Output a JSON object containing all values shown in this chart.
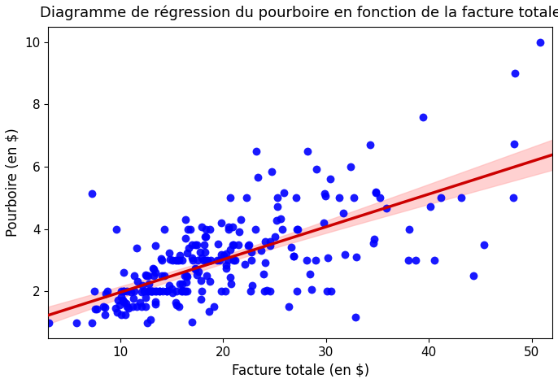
{
  "title": "Diagramme de régression du pourboire en fonction de la facture totale",
  "xlabel": "Facture totale (en $)",
  "ylabel": "Pourboire (en $)",
  "xlim": [
    3,
    52
  ],
  "ylim": [
    0.5,
    10.5
  ],
  "scatter_color": "#0000ff",
  "line_color": "#cc0000",
  "ci_color": "#ffb3b3",
  "scatter_alpha": 0.9,
  "scatter_size": 50,
  "line_width": 2.5,
  "title_fontsize": 13,
  "label_fontsize": 12,
  "tick_fontsize": 11,
  "background_color": "#ffffff",
  "xticks": [
    10,
    20,
    30,
    40,
    50
  ],
  "yticks": [
    2,
    4,
    6,
    8,
    10
  ]
}
